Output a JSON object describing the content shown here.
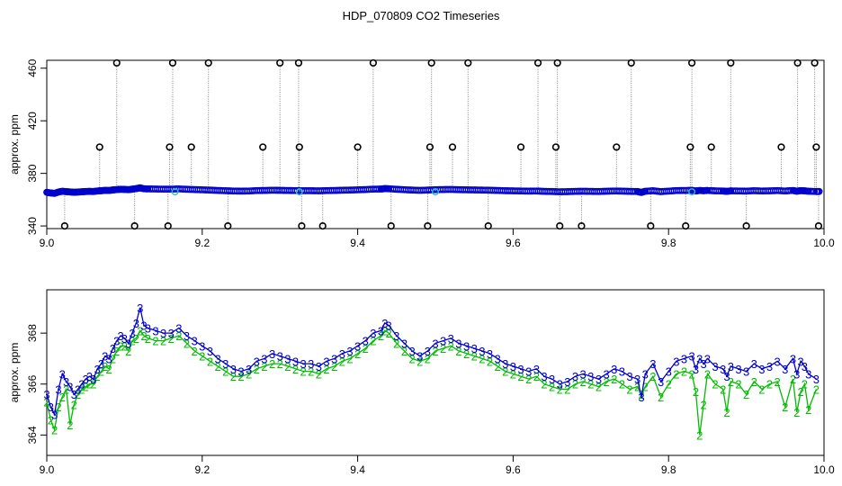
{
  "title": "HDP_070809  CO2 Timeseries",
  "colors": {
    "frame": "#000000",
    "outlier_line": "#808080",
    "series3": "#0000cc",
    "series2": "#00bb00",
    "series2_marker": "#22c7c7",
    "outlier_marker": "#000000"
  },
  "chart_data": [
    {
      "type": "scatter",
      "ylabel": "approx. ppm",
      "xlabel": "",
      "xlim": [
        9.0,
        10.0
      ],
      "ylim": [
        338,
        466
      ],
      "xticks": [
        9.0,
        9.2,
        9.4,
        9.6,
        9.8,
        10.0
      ],
      "xtick_labels": [
        "9.0",
        "9.2",
        "9.4",
        "9.6",
        "9.8",
        "10.0"
      ],
      "yticks": [
        340,
        380,
        420,
        460
      ],
      "ytick_labels": [
        "340",
        "380",
        "420",
        "460"
      ],
      "grid": false,
      "legend": "none",
      "outliers_high": [
        9.09,
        9.162,
        9.208,
        9.3,
        9.324,
        9.42,
        9.495,
        9.542,
        9.632,
        9.657,
        9.752,
        9.83,
        9.88,
        9.966,
        9.988
      ],
      "outliers_mid": [
        9.068,
        9.158,
        9.186,
        9.278,
        9.325,
        9.4,
        9.493,
        9.522,
        9.61,
        9.655,
        9.733,
        9.828,
        9.855,
        9.945,
        9.99
      ],
      "outliers_low": [
        9.023,
        9.113,
        9.156,
        9.233,
        9.328,
        9.355,
        9.443,
        9.49,
        9.568,
        9.66,
        9.688,
        9.777,
        9.822,
        9.9,
        9.993
      ],
      "outlier_values": {
        "high": 464,
        "mid": 400,
        "low": 340
      }
    },
    {
      "type": "line",
      "ylabel": "approx. ppm",
      "xlabel": "",
      "xlim": [
        9.0,
        10.0
      ],
      "ylim": [
        363.2,
        369.7
      ],
      "xticks": [
        9.0,
        9.2,
        9.4,
        9.6,
        9.8,
        10.0
      ],
      "xtick_labels": [
        "9.0",
        "9.2",
        "9.4",
        "9.6",
        "9.8",
        "10.0"
      ],
      "yticks": [
        364,
        366,
        368
      ],
      "ytick_labels": [
        "364",
        "366",
        "368"
      ],
      "grid": false,
      "legend": "none",
      "markers": [
        "3",
        "2"
      ],
      "series": [
        {
          "marker": "3",
          "x": [
            9.0,
            9.005,
            9.01,
            9.015,
            9.02,
            9.025,
            9.03,
            9.035,
            9.04,
            9.045,
            9.05,
            9.055,
            9.06,
            9.065,
            9.07,
            9.075,
            9.08,
            9.085,
            9.09,
            9.095,
            9.1,
            9.105,
            9.11,
            9.115,
            9.12,
            9.125,
            9.13,
            9.14,
            9.15,
            9.16,
            9.17,
            9.18,
            9.19,
            9.2,
            9.21,
            9.22,
            9.23,
            9.24,
            9.25,
            9.26,
            9.27,
            9.28,
            9.29,
            9.3,
            9.31,
            9.32,
            9.33,
            9.34,
            9.35,
            9.36,
            9.37,
            9.38,
            9.39,
            9.4,
            9.41,
            9.42,
            9.43,
            9.435,
            9.44,
            9.45,
            9.46,
            9.47,
            9.48,
            9.49,
            9.5,
            9.51,
            9.52,
            9.53,
            9.54,
            9.55,
            9.56,
            9.57,
            9.58,
            9.59,
            9.6,
            9.61,
            9.62,
            9.63,
            9.64,
            9.65,
            9.66,
            9.67,
            9.68,
            9.69,
            9.7,
            9.71,
            9.72,
            9.73,
            9.74,
            9.75,
            9.76,
            9.765,
            9.77,
            9.78,
            9.79,
            9.8,
            9.81,
            9.82,
            9.83,
            9.835,
            9.84,
            9.845,
            9.85,
            9.86,
            9.87,
            9.875,
            9.88,
            9.89,
            9.9,
            9.91,
            9.92,
            9.93,
            9.94,
            9.95,
            9.96,
            9.965,
            9.97,
            9.975,
            9.98,
            9.99
          ],
          "y": [
            365.6,
            365.1,
            364.8,
            365.8,
            366.4,
            366.1,
            365.9,
            365.6,
            365.8,
            366.0,
            366.2,
            366.3,
            366.2,
            366.6,
            366.8,
            367.1,
            367.0,
            367.4,
            367.7,
            367.9,
            367.8,
            367.6,
            368.0,
            368.4,
            369.0,
            368.3,
            368.2,
            368.1,
            368.0,
            368.0,
            368.2,
            367.9,
            367.7,
            367.5,
            367.3,
            367.0,
            366.8,
            366.6,
            366.5,
            366.6,
            366.9,
            367.0,
            367.2,
            367.1,
            367.0,
            366.9,
            366.8,
            366.8,
            366.7,
            366.9,
            367.0,
            367.2,
            367.3,
            367.5,
            367.7,
            368.0,
            368.1,
            368.4,
            368.3,
            367.9,
            367.6,
            367.3,
            367.1,
            367.3,
            367.6,
            367.7,
            367.8,
            367.6,
            367.5,
            367.4,
            367.3,
            367.2,
            367.0,
            366.8,
            366.7,
            366.6,
            366.5,
            366.6,
            366.3,
            366.2,
            366.0,
            366.1,
            366.3,
            366.4,
            366.3,
            366.2,
            366.4,
            366.6,
            366.5,
            366.3,
            366.2,
            365.5,
            366.4,
            366.8,
            366.1,
            366.5,
            366.9,
            367.0,
            367.1,
            366.6,
            367.0,
            366.8,
            367.0,
            366.7,
            366.6,
            366.3,
            366.7,
            366.6,
            366.5,
            366.8,
            366.6,
            366.7,
            366.9,
            366.6,
            367.0,
            366.4,
            366.9,
            366.7,
            366.4,
            366.2
          ]
        },
        {
          "marker": "2",
          "x": [
            9.0,
            9.005,
            9.01,
            9.015,
            9.02,
            9.025,
            9.03,
            9.035,
            9.04,
            9.045,
            9.05,
            9.055,
            9.06,
            9.065,
            9.07,
            9.075,
            9.08,
            9.085,
            9.09,
            9.095,
            9.1,
            9.105,
            9.11,
            9.115,
            9.12,
            9.125,
            9.13,
            9.14,
            9.15,
            9.16,
            9.17,
            9.18,
            9.19,
            9.2,
            9.21,
            9.22,
            9.23,
            9.24,
            9.25,
            9.26,
            9.27,
            9.28,
            9.29,
            9.3,
            9.31,
            9.32,
            9.33,
            9.34,
            9.35,
            9.36,
            9.37,
            9.38,
            9.39,
            9.4,
            9.41,
            9.42,
            9.43,
            9.435,
            9.44,
            9.45,
            9.46,
            9.47,
            9.48,
            9.49,
            9.5,
            9.51,
            9.52,
            9.53,
            9.54,
            9.55,
            9.56,
            9.57,
            9.58,
            9.59,
            9.6,
            9.61,
            9.62,
            9.63,
            9.64,
            9.65,
            9.66,
            9.67,
            9.68,
            9.69,
            9.7,
            9.71,
            9.72,
            9.73,
            9.74,
            9.75,
            9.76,
            9.765,
            9.77,
            9.78,
            9.79,
            9.8,
            9.81,
            9.82,
            9.83,
            9.835,
            9.84,
            9.845,
            9.85,
            9.86,
            9.87,
            9.875,
            9.88,
            9.89,
            9.9,
            9.91,
            9.92,
            9.93,
            9.94,
            9.95,
            9.96,
            9.965,
            9.97,
            9.975,
            9.98,
            9.99
          ],
          "y": [
            365.3,
            364.6,
            364.2,
            365.1,
            365.5,
            365.8,
            364.4,
            365.2,
            365.6,
            365.8,
            365.9,
            366.0,
            366.0,
            366.3,
            366.5,
            366.7,
            366.6,
            367.0,
            367.3,
            367.5,
            367.5,
            367.3,
            367.7,
            367.8,
            368.1,
            367.9,
            367.8,
            367.7,
            367.7,
            367.8,
            367.9,
            367.6,
            367.3,
            367.1,
            366.9,
            366.7,
            366.5,
            366.3,
            366.3,
            366.4,
            366.6,
            366.7,
            366.8,
            366.8,
            366.7,
            366.6,
            366.5,
            366.5,
            366.4,
            366.6,
            366.7,
            366.9,
            367.0,
            367.2,
            367.4,
            367.7,
            367.9,
            368.1,
            368.0,
            367.6,
            367.3,
            367.0,
            366.9,
            367.0,
            367.3,
            367.4,
            367.5,
            367.3,
            367.2,
            367.1,
            367.0,
            366.9,
            366.7,
            366.5,
            366.4,
            366.3,
            366.2,
            366.3,
            366.0,
            365.9,
            365.8,
            365.8,
            366.0,
            366.1,
            366.0,
            365.9,
            366.1,
            366.2,
            366.0,
            365.8,
            365.9,
            365.6,
            365.9,
            366.3,
            365.5,
            366.0,
            366.4,
            366.5,
            366.4,
            365.7,
            364.0,
            365.2,
            366.4,
            366.0,
            365.8,
            364.9,
            366.1,
            366.0,
            365.6,
            366.1,
            365.8,
            366.0,
            366.1,
            365.1,
            366.2,
            364.9,
            365.7,
            366.0,
            365.0,
            365.8
          ]
        }
      ]
    }
  ]
}
